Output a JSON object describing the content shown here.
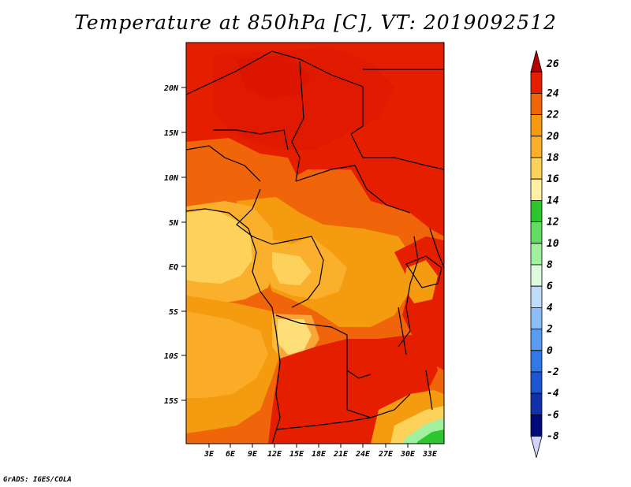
{
  "title": "Temperature at 850hPa [C], VT: 2019092512",
  "credit": "GrADS: IGES/COLA",
  "map": {
    "lat_labels": [
      "20N",
      "15N",
      "10N",
      "5N",
      "EQ",
      "5S",
      "10S",
      "15S"
    ],
    "lon_labels": [
      "3E",
      "6E",
      "9E",
      "12E",
      "15E",
      "18E",
      "21E",
      "24E",
      "27E",
      "30E",
      "33E"
    ],
    "colors": {
      "t26": "#a60000",
      "t24": "#e61400",
      "t22": "#f05a0a",
      "t20": "#f59b0f",
      "t18": "#fabe3c",
      "t16": "#fde18c",
      "t14": "#fff5bf",
      "t12": "#2ec62e",
      "t10": "#85e685",
      "t8": "#c8f5c0"
    }
  },
  "colorbar": {
    "labels": [
      "26",
      "24",
      "22",
      "20",
      "18",
      "16",
      "14",
      "12",
      "10",
      "8",
      "6",
      "4",
      "2",
      "0",
      "-2",
      "-4",
      "-6",
      "-8"
    ],
    "colors": [
      "#b40000",
      "#e61e00",
      "#f0640a",
      "#f59b0f",
      "#faaf2d",
      "#fdd25a",
      "#fff0a5",
      "#2ec62e",
      "#64dc64",
      "#a0f0a0",
      "#dcfadc",
      "#bedcfa",
      "#8cbef5",
      "#5a9bf0",
      "#3278e6",
      "#1e55d2",
      "#0f32aa",
      "#000a78",
      "#d2d2fa"
    ]
  }
}
